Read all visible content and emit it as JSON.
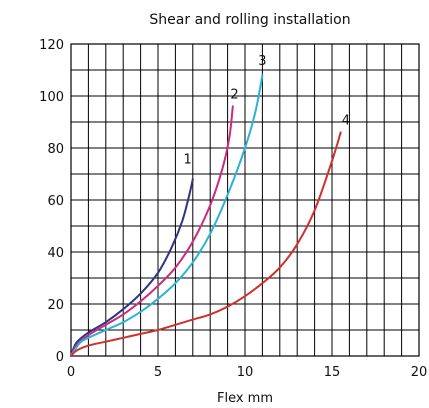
{
  "chart_data": {
    "type": "line",
    "title": "Shear and rolling installation",
    "xlabel": "Flex mm",
    "ylabel": "",
    "xlim": [
      0,
      20
    ],
    "ylim": [
      0,
      120
    ],
    "x_ticks": [
      "0",
      "5",
      "10",
      "15",
      "20"
    ],
    "y_ticks": [
      "0",
      "20",
      "40",
      "60",
      "80",
      "100",
      "120"
    ],
    "x_minor_step": 1,
    "y_minor_step": 10,
    "grid": true,
    "series": [
      {
        "name": "1",
        "color": "#2e3480",
        "label_at": [
          6.7,
          74
        ],
        "points": [
          [
            0,
            0
          ],
          [
            0.3,
            5
          ],
          [
            1,
            9
          ],
          [
            2,
            13
          ],
          [
            3,
            18
          ],
          [
            4,
            24
          ],
          [
            5,
            32
          ],
          [
            5.8,
            42
          ],
          [
            6.4,
            52
          ],
          [
            6.8,
            62
          ],
          [
            7.0,
            68
          ]
        ]
      },
      {
        "name": "2",
        "color": "#cc2a7a",
        "label_at": [
          9.4,
          99
        ],
        "points": [
          [
            0,
            0
          ],
          [
            0.3,
            4
          ],
          [
            1,
            8
          ],
          [
            2,
            12
          ],
          [
            3,
            16
          ],
          [
            4,
            21
          ],
          [
            5,
            27
          ],
          [
            6,
            34
          ],
          [
            7,
            44
          ],
          [
            8,
            58
          ],
          [
            8.7,
            72
          ],
          [
            9.1,
            84
          ],
          [
            9.3,
            96
          ]
        ]
      },
      {
        "name": "3",
        "color": "#2bb3d6",
        "label_at": [
          11.0,
          112
        ],
        "points": [
          [
            0,
            0
          ],
          [
            0.5,
            5
          ],
          [
            1,
            7
          ],
          [
            2,
            10
          ],
          [
            3,
            13
          ],
          [
            4,
            17
          ],
          [
            5,
            22
          ],
          [
            6,
            28
          ],
          [
            7,
            36
          ],
          [
            8,
            47
          ],
          [
            9,
            62
          ],
          [
            10,
            80
          ],
          [
            10.6,
            94
          ],
          [
            11.0,
            108
          ]
        ]
      },
      {
        "name": "4",
        "color": "#d0302a",
        "label_at": [
          15.8,
          89
        ],
        "points": [
          [
            0,
            0
          ],
          [
            0.3,
            2
          ],
          [
            1,
            4
          ],
          [
            2,
            5.5
          ],
          [
            3,
            7
          ],
          [
            4,
            8.5
          ],
          [
            5,
            10
          ],
          [
            6,
            12
          ],
          [
            7,
            14
          ],
          [
            8,
            16
          ],
          [
            9,
            19
          ],
          [
            10,
            23
          ],
          [
            11,
            28
          ],
          [
            12,
            34
          ],
          [
            13,
            43
          ],
          [
            14,
            56
          ],
          [
            15,
            75
          ],
          [
            15.5,
            86
          ]
        ]
      }
    ]
  }
}
